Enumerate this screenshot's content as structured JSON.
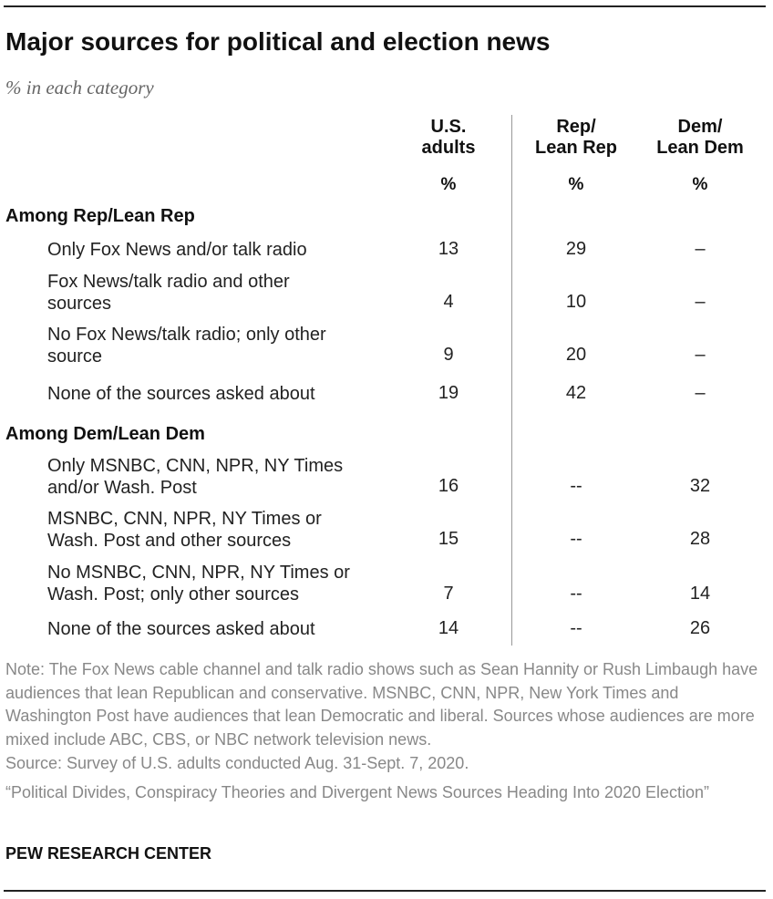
{
  "title": "Major sources for political and election news",
  "subtitle": "% in each category",
  "chart_data": {
    "type": "table",
    "columns": [
      {
        "label": "U.S.\nadults",
        "unit": "%"
      },
      {
        "label": "Rep/\nLean Rep",
        "unit": "%"
      },
      {
        "label": "Dem/\nLean Dem",
        "unit": "%"
      }
    ],
    "sections": [
      {
        "label": "Among Rep/Lean Rep",
        "rows": [
          {
            "label": "Only Fox News and/or talk radio",
            "values": [
              "13",
              "29",
              "–"
            ]
          },
          {
            "label": "Fox News/talk radio and other sources",
            "values": [
              "4",
              "10",
              "–"
            ]
          },
          {
            "label": "No Fox News/talk radio; only other source",
            "values": [
              "9",
              "20",
              "–"
            ]
          },
          {
            "label": "None of the sources asked about",
            "values": [
              "19",
              "42",
              "–"
            ]
          }
        ]
      },
      {
        "label": "Among Dem/Lean Dem",
        "rows": [
          {
            "label": "Only MSNBC, CNN, NPR, NY Times and/or Wash. Post",
            "values": [
              "16",
              "--",
              "32"
            ]
          },
          {
            "label": "MSNBC, CNN, NPR, NY Times or Wash. Post and other sources",
            "values": [
              "15",
              "--",
              "28"
            ]
          },
          {
            "label": "No MSNBC, CNN, NPR, NY Times or Wash. Post; only other sources",
            "values": [
              "7",
              "--",
              "14"
            ]
          },
          {
            "label": "None of the sources asked about",
            "values": [
              "14",
              "--",
              "26"
            ]
          }
        ]
      }
    ]
  },
  "footer": {
    "note": "Note: The Fox News cable channel and talk radio shows such as Sean Hannity or Rush Limbaugh have audiences that lean Republican and conservative. MSNBC, CNN, NPR, New York Times and Washington Post have audiences that lean Democratic and liberal. Sources whose audiences are more mixed include ABC, CBS, or NBC network television news.",
    "source": "Source: Survey of U.S. adults conducted Aug. 31-Sept. 7, 2020.",
    "report": "“Political Divides, Conspiracy Theories and Divergent News Sources Heading Into 2020 Election”",
    "brand": "PEW RESEARCH CENTER"
  }
}
